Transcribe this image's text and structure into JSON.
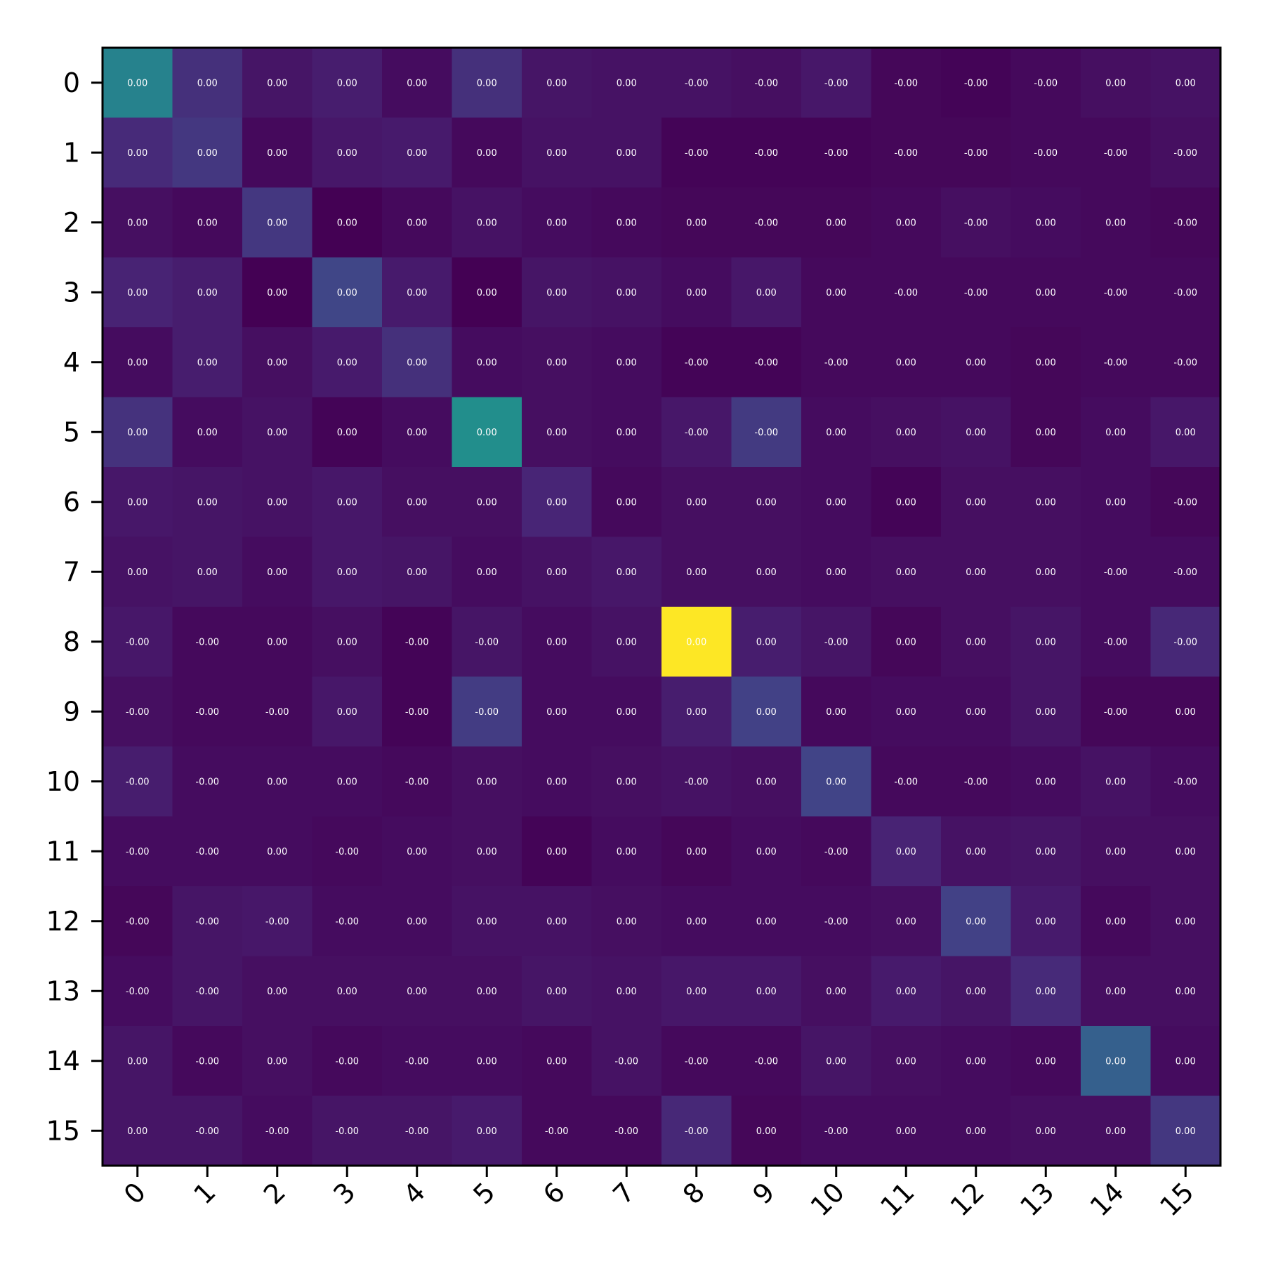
{
  "chart_data": {
    "type": "heatmap",
    "title": "",
    "xlabel": "",
    "ylabel": "",
    "x_ticks": [
      "0",
      "1",
      "2",
      "3",
      "4",
      "5",
      "6",
      "7",
      "8",
      "9",
      "10",
      "11",
      "12",
      "13",
      "14",
      "15"
    ],
    "y_ticks": [
      "0",
      "1",
      "2",
      "3",
      "4",
      "5",
      "6",
      "7",
      "8",
      "9",
      "10",
      "11",
      "12",
      "13",
      "14",
      "15"
    ],
    "colormap": "viridis",
    "color_range": [
      0,
      1
    ],
    "intensity": [
      [
        0.55,
        0.17,
        0.07,
        0.1,
        0.04,
        0.17,
        0.07,
        0.06,
        0.06,
        0.05,
        0.08,
        0.02,
        0.01,
        0.03,
        0.05,
        0.06
      ],
      [
        0.15,
        0.2,
        0.03,
        0.08,
        0.09,
        0.03,
        0.06,
        0.06,
        0.01,
        0.01,
        0.01,
        0.02,
        0.02,
        0.03,
        0.03,
        0.05
      ],
      [
        0.05,
        0.03,
        0.2,
        0.0,
        0.03,
        0.06,
        0.04,
        0.03,
        0.02,
        0.02,
        0.02,
        0.03,
        0.05,
        0.04,
        0.03,
        0.02
      ],
      [
        0.12,
        0.1,
        0.0,
        0.26,
        0.09,
        0.0,
        0.07,
        0.06,
        0.04,
        0.08,
        0.03,
        0.03,
        0.03,
        0.03,
        0.03,
        0.03
      ],
      [
        0.04,
        0.1,
        0.05,
        0.09,
        0.17,
        0.04,
        0.05,
        0.04,
        0.01,
        0.01,
        0.03,
        0.03,
        0.03,
        0.02,
        0.03,
        0.03
      ],
      [
        0.18,
        0.04,
        0.06,
        0.01,
        0.04,
        0.61,
        0.05,
        0.04,
        0.08,
        0.21,
        0.04,
        0.05,
        0.06,
        0.02,
        0.04,
        0.08
      ],
      [
        0.08,
        0.07,
        0.06,
        0.08,
        0.05,
        0.05,
        0.13,
        0.03,
        0.05,
        0.05,
        0.04,
        0.01,
        0.05,
        0.05,
        0.04,
        0.02
      ],
      [
        0.06,
        0.07,
        0.04,
        0.08,
        0.07,
        0.04,
        0.06,
        0.08,
        0.05,
        0.05,
        0.04,
        0.05,
        0.05,
        0.05,
        0.04,
        0.04
      ],
      [
        0.08,
        0.03,
        0.03,
        0.05,
        0.01,
        0.07,
        0.04,
        0.06,
        1.0,
        0.1,
        0.07,
        0.02,
        0.05,
        0.07,
        0.04,
        0.14
      ],
      [
        0.05,
        0.03,
        0.03,
        0.08,
        0.01,
        0.22,
        0.04,
        0.04,
        0.1,
        0.24,
        0.03,
        0.04,
        0.04,
        0.07,
        0.02,
        0.02
      ],
      [
        0.1,
        0.04,
        0.04,
        0.04,
        0.03,
        0.05,
        0.04,
        0.05,
        0.06,
        0.05,
        0.25,
        0.03,
        0.03,
        0.04,
        0.06,
        0.04
      ],
      [
        0.04,
        0.04,
        0.04,
        0.03,
        0.04,
        0.05,
        0.01,
        0.04,
        0.02,
        0.04,
        0.03,
        0.12,
        0.06,
        0.07,
        0.05,
        0.05
      ],
      [
        0.02,
        0.07,
        0.08,
        0.04,
        0.04,
        0.06,
        0.06,
        0.05,
        0.04,
        0.04,
        0.04,
        0.05,
        0.24,
        0.09,
        0.03,
        0.05
      ],
      [
        0.04,
        0.07,
        0.05,
        0.05,
        0.05,
        0.05,
        0.07,
        0.06,
        0.08,
        0.08,
        0.05,
        0.09,
        0.07,
        0.15,
        0.05,
        0.05
      ],
      [
        0.07,
        0.03,
        0.05,
        0.03,
        0.04,
        0.04,
        0.03,
        0.06,
        0.03,
        0.03,
        0.07,
        0.05,
        0.04,
        0.03,
        0.38,
        0.04
      ],
      [
        0.07,
        0.07,
        0.04,
        0.07,
        0.07,
        0.09,
        0.03,
        0.03,
        0.14,
        0.02,
        0.04,
        0.04,
        0.04,
        0.05,
        0.05,
        0.2
      ]
    ],
    "cell_labels": [
      [
        "0.00",
        "0.00",
        "0.00",
        "0.00",
        "0.00",
        "0.00",
        "0.00",
        "0.00",
        "-0.00",
        "-0.00",
        "-0.00",
        "-0.00",
        "-0.00",
        "-0.00",
        "0.00",
        "0.00"
      ],
      [
        "0.00",
        "0.00",
        "0.00",
        "0.00",
        "0.00",
        "0.00",
        "0.00",
        "0.00",
        "-0.00",
        "-0.00",
        "-0.00",
        "-0.00",
        "-0.00",
        "-0.00",
        "-0.00",
        "-0.00"
      ],
      [
        "0.00",
        "0.00",
        "0.00",
        "0.00",
        "0.00",
        "0.00",
        "0.00",
        "0.00",
        "0.00",
        "-0.00",
        "0.00",
        "0.00",
        "-0.00",
        "0.00",
        "0.00",
        "-0.00"
      ],
      [
        "0.00",
        "0.00",
        "0.00",
        "0.00",
        "0.00",
        "0.00",
        "0.00",
        "0.00",
        "0.00",
        "0.00",
        "0.00",
        "-0.00",
        "-0.00",
        "0.00",
        "-0.00",
        "-0.00"
      ],
      [
        "0.00",
        "0.00",
        "0.00",
        "0.00",
        "0.00",
        "0.00",
        "0.00",
        "0.00",
        "-0.00",
        "-0.00",
        "-0.00",
        "0.00",
        "0.00",
        "0.00",
        "-0.00",
        "-0.00"
      ],
      [
        "0.00",
        "0.00",
        "0.00",
        "0.00",
        "0.00",
        "0.00",
        "0.00",
        "0.00",
        "-0.00",
        "-0.00",
        "0.00",
        "0.00",
        "0.00",
        "0.00",
        "0.00",
        "0.00"
      ],
      [
        "0.00",
        "0.00",
        "0.00",
        "0.00",
        "0.00",
        "0.00",
        "0.00",
        "0.00",
        "0.00",
        "0.00",
        "0.00",
        "0.00",
        "0.00",
        "0.00",
        "0.00",
        "-0.00"
      ],
      [
        "0.00",
        "0.00",
        "0.00",
        "0.00",
        "0.00",
        "0.00",
        "0.00",
        "0.00",
        "0.00",
        "0.00",
        "0.00",
        "0.00",
        "0.00",
        "0.00",
        "-0.00",
        "-0.00"
      ],
      [
        "-0.00",
        "-0.00",
        "0.00",
        "0.00",
        "-0.00",
        "-0.00",
        "0.00",
        "0.00",
        "0.00",
        "0.00",
        "-0.00",
        "0.00",
        "0.00",
        "0.00",
        "-0.00",
        "-0.00"
      ],
      [
        "-0.00",
        "-0.00",
        "-0.00",
        "0.00",
        "-0.00",
        "-0.00",
        "0.00",
        "0.00",
        "0.00",
        "0.00",
        "0.00",
        "0.00",
        "0.00",
        "0.00",
        "-0.00",
        "0.00"
      ],
      [
        "-0.00",
        "-0.00",
        "0.00",
        "0.00",
        "-0.00",
        "0.00",
        "0.00",
        "0.00",
        "-0.00",
        "0.00",
        "0.00",
        "-0.00",
        "-0.00",
        "0.00",
        "0.00",
        "-0.00"
      ],
      [
        "-0.00",
        "-0.00",
        "0.00",
        "-0.00",
        "0.00",
        "0.00",
        "0.00",
        "0.00",
        "0.00",
        "0.00",
        "-0.00",
        "0.00",
        "0.00",
        "0.00",
        "0.00",
        "0.00"
      ],
      [
        "-0.00",
        "-0.00",
        "-0.00",
        "-0.00",
        "0.00",
        "0.00",
        "0.00",
        "0.00",
        "0.00",
        "0.00",
        "-0.00",
        "0.00",
        "0.00",
        "0.00",
        "0.00",
        "0.00"
      ],
      [
        "-0.00",
        "-0.00",
        "0.00",
        "0.00",
        "0.00",
        "0.00",
        "0.00",
        "0.00",
        "0.00",
        "0.00",
        "0.00",
        "0.00",
        "0.00",
        "0.00",
        "0.00",
        "0.00"
      ],
      [
        "0.00",
        "-0.00",
        "0.00",
        "-0.00",
        "-0.00",
        "0.00",
        "0.00",
        "-0.00",
        "-0.00",
        "-0.00",
        "0.00",
        "0.00",
        "0.00",
        "0.00",
        "0.00",
        "0.00"
      ],
      [
        "0.00",
        "-0.00",
        "-0.00",
        "-0.00",
        "-0.00",
        "0.00",
        "-0.00",
        "-0.00",
        "-0.00",
        "0.00",
        "-0.00",
        "0.00",
        "0.00",
        "0.00",
        "0.00",
        "0.00"
      ]
    ],
    "grid": false,
    "legend": "none"
  }
}
